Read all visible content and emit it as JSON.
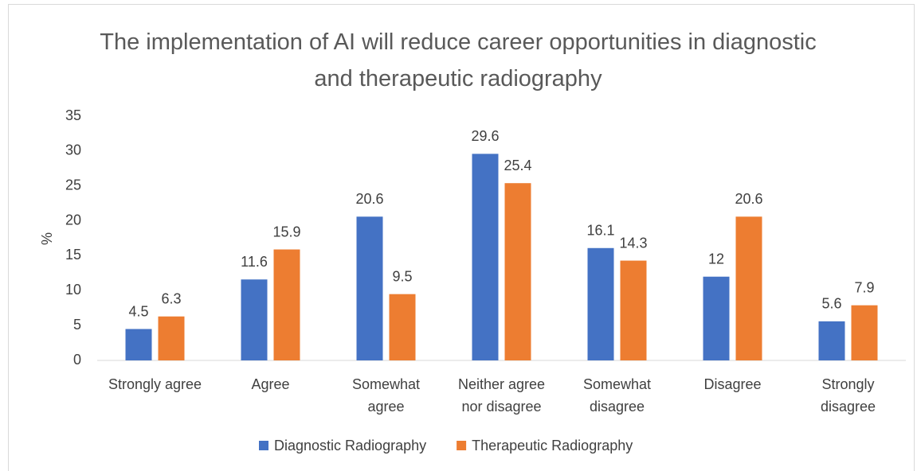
{
  "chart_data": {
    "type": "bar",
    "title": "The implementation of AI will reduce career opportunities in diagnostic and therapeutic radiography",
    "y_label": "%",
    "categories": [
      [
        "Strongly agree"
      ],
      [
        "Agree"
      ],
      [
        "Somewhat",
        "agree"
      ],
      [
        "Neither agree",
        "nor disagree"
      ],
      [
        "Somewhat",
        "disagree"
      ],
      [
        "Disagree"
      ],
      [
        "Strongly",
        "disagree"
      ]
    ],
    "series": [
      {
        "name": "Diagnostic Radiography",
        "color": "#4472c4",
        "values": [
          4.5,
          11.6,
          20.6,
          29.6,
          16.1,
          12,
          5.6
        ]
      },
      {
        "name": "Therapeutic Radiography",
        "color": "#ed7d31",
        "values": [
          6.3,
          15.9,
          9.5,
          25.4,
          14.3,
          20.6,
          7.9
        ]
      }
    ],
    "ylim": [
      0,
      35
    ],
    "yticks": [
      0,
      5,
      10,
      15,
      20,
      25,
      30,
      35
    ],
    "grid": false,
    "legend": "bottom"
  }
}
